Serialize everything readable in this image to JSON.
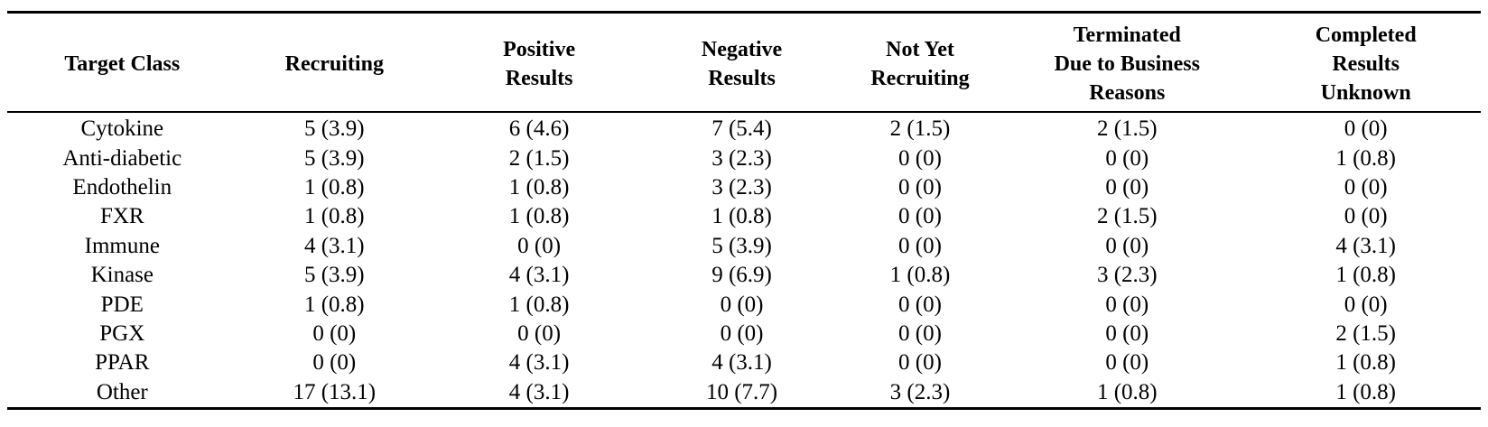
{
  "table": {
    "columns": [
      "Target Class",
      "Recruiting",
      "Positive Results",
      "Negative Results",
      "Not Yet Recruiting",
      "Terminated Due to Business Reasons",
      "Completed Results Unknown"
    ],
    "rows": [
      [
        "Cytokine",
        "5 (3.9)",
        "6 (4.6)",
        "7 (5.4)",
        "2 (1.5)",
        "2 (1.5)",
        "0 (0)"
      ],
      [
        "Anti-diabetic",
        "5 (3.9)",
        "2 (1.5)",
        "3 (2.3)",
        "0 (0)",
        "0 (0)",
        "1 (0.8)"
      ],
      [
        "Endothelin",
        "1 (0.8)",
        "1 (0.8)",
        "3 (2.3)",
        "0 (0)",
        "0 (0)",
        "0 (0)"
      ],
      [
        "FXR",
        "1 (0.8)",
        "1 (0.8)",
        "1 (0.8)",
        "0 (0)",
        "2 (1.5)",
        "0 (0)"
      ],
      [
        "Immune",
        "4 (3.1)",
        "0 (0)",
        "5 (3.9)",
        "0 (0)",
        "0 (0)",
        "4 (3.1)"
      ],
      [
        "Kinase",
        "5 (3.9)",
        "4 (3.1)",
        "9 (6.9)",
        "1 (0.8)",
        "3 (2.3)",
        "1 (0.8)"
      ],
      [
        "PDE",
        "1 (0.8)",
        "1 (0.8)",
        "0 (0)",
        "0 (0)",
        "0 (0)",
        "0 (0)"
      ],
      [
        "PGX",
        "0 (0)",
        "0 (0)",
        "0 (0)",
        "0 (0)",
        "0 (0)",
        "2 (1.5)"
      ],
      [
        "PPAR",
        "0 (0)",
        "4 (3.1)",
        "4 (3.1)",
        "0 (0)",
        "0 (0)",
        "1 (0.8)"
      ],
      [
        "Other",
        "17 (13.1)",
        "4 (3.1)",
        "10 (7.7)",
        "3 (2.3)",
        "1 (0.8)",
        "1 (0.8)"
      ]
    ]
  }
}
